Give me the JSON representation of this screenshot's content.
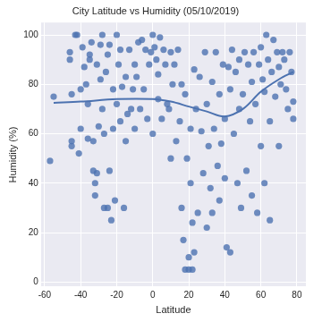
{
  "chart_data": {
    "type": "scatter",
    "title": "City Latitude vs Humidity (05/10/2019)",
    "x_label": "Latitude",
    "y_label": "Humidity (%)",
    "xlim": [
      -62,
      85
    ],
    "xticks": [
      -60,
      -40,
      -20,
      0,
      20,
      40,
      60,
      80
    ],
    "ylim": [
      -2,
      105
    ],
    "yticks": [
      0,
      20,
      40,
      60,
      80,
      100
    ],
    "grid": true,
    "series": [
      {
        "type": "scatter",
        "color": "#4c72b0",
        "marker": "circle",
        "x": [
          -57,
          -55,
          -46,
          -46,
          -45,
          -45,
          -45,
          -43,
          -42,
          -41,
          -40,
          -40,
          -39,
          -38,
          -37,
          -36,
          -36,
          -35,
          -35,
          -34,
          -33,
          -33,
          -32,
          -32,
          -31,
          -31,
          -30,
          -29,
          -29,
          -28,
          -28,
          -27,
          -27,
          -26,
          -25,
          -25,
          -24,
          -24,
          -23,
          -22,
          -22,
          -21,
          -20,
          -20,
          -19,
          -18,
          -18,
          -17,
          -16,
          -15,
          -15,
          -14,
          -13,
          -12,
          -11,
          -10,
          -10,
          -9,
          -8,
          -7,
          -6,
          -5,
          -4,
          -3,
          -2,
          -1,
          0,
          0,
          1,
          2,
          3,
          3,
          4,
          5,
          6,
          7,
          8,
          9,
          10,
          10,
          11,
          12,
          13,
          14,
          15,
          16,
          16,
          17,
          18,
          18,
          19,
          20,
          20,
          21,
          21,
          22,
          22,
          23,
          23,
          24,
          25,
          26,
          27,
          28,
          29,
          30,
          30,
          31,
          32,
          33,
          33,
          34,
          35,
          36,
          37,
          37,
          38,
          39,
          40,
          40,
          41,
          42,
          43,
          43,
          44,
          45,
          46,
          47,
          48,
          48,
          49,
          50,
          51,
          52,
          53,
          54,
          55,
          55,
          56,
          57,
          58,
          59,
          60,
          60,
          61,
          62,
          62,
          63,
          64,
          65,
          65,
          66,
          67,
          68,
          69,
          70,
          70,
          71,
          72,
          73,
          74,
          75,
          76,
          77,
          78,
          78
        ],
        "values": [
          49,
          75,
          93,
          90,
          76,
          57,
          55,
          100,
          100,
          52,
          78,
          62,
          95,
          87,
          80,
          72,
          58,
          90,
          92,
          97,
          57,
          45,
          40,
          35,
          88,
          44,
          63,
          96,
          82,
          100,
          70,
          60,
          30,
          85,
          92,
          30,
          96,
          45,
          25,
          62,
          78,
          33,
          100,
          72,
          88,
          65,
          94,
          79,
          30,
          57,
          83,
          68,
          94,
          70,
          78,
          88,
          62,
          83,
          97,
          70,
          98,
          78,
          94,
          66,
          88,
          93,
          100,
          60,
          95,
          90,
          74,
          84,
          99,
          66,
          94,
          88,
          72,
          70,
          93,
          50,
          80,
          88,
          57,
          94,
          65,
          30,
          80,
          17,
          76,
          5,
          50,
          5,
          10,
          62,
          40,
          24,
          5,
          86,
          12,
          70,
          28,
          83,
          61,
          44,
          93,
          72,
          22,
          55,
          38,
          81,
          28,
          62,
          93,
          47,
          76,
          33,
          56,
          88,
          66,
          42,
          14,
          87,
          78,
          12,
          94,
          60,
          85,
          40,
          90,
          70,
          30,
          76,
          93,
          45,
          88,
          65,
          81,
          35,
          93,
          72,
          28,
          88,
          95,
          55,
          82,
          77,
          40,
          100,
          90,
          65,
          25,
          85,
          98,
          75,
          93,
          87,
          55,
          80,
          93,
          90,
          78,
          70,
          93,
          85,
          73,
          66
        ]
      },
      {
        "type": "line",
        "color": "#4c72b0",
        "x": [
          -55,
          -40,
          -20,
          0,
          10,
          20,
          30,
          40,
          50,
          60,
          70,
          78
        ],
        "values": [
          72.5,
          73,
          74,
          74,
          73,
          71,
          69,
          67,
          70,
          77,
          82,
          85
        ]
      }
    ]
  }
}
